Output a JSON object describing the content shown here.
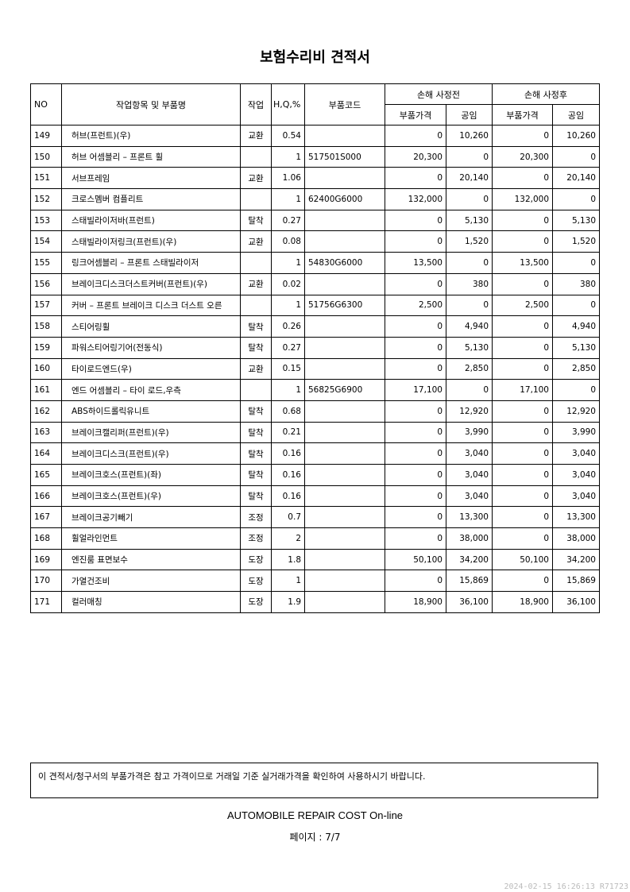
{
  "title": "보험수리비 견적서",
  "headers": {
    "no": "NO",
    "item": "작업항목 및 부품명",
    "work": "작업",
    "hq": "H,Q,%",
    "code": "부품코드",
    "before": "손해 사정전",
    "after": "손해 사정후",
    "parts_price": "부품가격",
    "labor": "공임"
  },
  "rows": [
    [
      "149",
      "허브(프런트)(우)",
      "교환",
      "0.54",
      "",
      "0",
      "10,260",
      "0",
      "10,260"
    ],
    [
      "150",
      "허브 어셈블리 – 프론트 휠",
      "",
      "1",
      "517501S000",
      "20,300",
      "0",
      "20,300",
      "0"
    ],
    [
      "151",
      "서브프레임",
      "교환",
      "1.06",
      "",
      "0",
      "20,140",
      "0",
      "20,140"
    ],
    [
      "152",
      "크로스멤버 컴플리트",
      "",
      "1",
      "62400G6000",
      "132,000",
      "0",
      "132,000",
      "0"
    ],
    [
      "153",
      "스태빌라이저바(프런트)",
      "탈착",
      "0.27",
      "",
      "0",
      "5,130",
      "0",
      "5,130"
    ],
    [
      "154",
      "스태빌라이저링크(프런트)(우)",
      "교환",
      "0.08",
      "",
      "0",
      "1,520",
      "0",
      "1,520"
    ],
    [
      "155",
      "링크어셈블리 – 프론트 스태빌라이저",
      "",
      "1",
      "54830G6000",
      "13,500",
      "0",
      "13,500",
      "0"
    ],
    [
      "156",
      "브레이크디스크더스트커버(프런트)(우)",
      "교환",
      "0.02",
      "",
      "0",
      "380",
      "0",
      "380"
    ],
    [
      "157",
      "커버 – 프론트 브레이크 디스크 더스트 오른",
      "",
      "1",
      "51756G6300",
      "2,500",
      "0",
      "2,500",
      "0"
    ],
    [
      "158",
      "스티어링휠",
      "탈착",
      "0.26",
      "",
      "0",
      "4,940",
      "0",
      "4,940"
    ],
    [
      "159",
      "파워스티어링기어(전동식)",
      "탈착",
      "0.27",
      "",
      "0",
      "5,130",
      "0",
      "5,130"
    ],
    [
      "160",
      "타이로드엔드(우)",
      "교환",
      "0.15",
      "",
      "0",
      "2,850",
      "0",
      "2,850"
    ],
    [
      "161",
      "엔드 어셈블리 – 타이 로드,우측",
      "",
      "1",
      "56825G6900",
      "17,100",
      "0",
      "17,100",
      "0"
    ],
    [
      "162",
      "ABS하이드롤릭유니트",
      "탈착",
      "0.68",
      "",
      "0",
      "12,920",
      "0",
      "12,920"
    ],
    [
      "163",
      "브레이크캘리퍼(프런트)(우)",
      "탈착",
      "0.21",
      "",
      "0",
      "3,990",
      "0",
      "3,990"
    ],
    [
      "164",
      "브레이크디스크(프런트)(우)",
      "탈착",
      "0.16",
      "",
      "0",
      "3,040",
      "0",
      "3,040"
    ],
    [
      "165",
      "브레이크호스(프런트)(좌)",
      "탈착",
      "0.16",
      "",
      "0",
      "3,040",
      "0",
      "3,040"
    ],
    [
      "166",
      "브레이크호스(프런트)(우)",
      "탈착",
      "0.16",
      "",
      "0",
      "3,040",
      "0",
      "3,040"
    ],
    [
      "167",
      "브레이크공기빼기",
      "조정",
      "0.7",
      "",
      "0",
      "13,300",
      "0",
      "13,300"
    ],
    [
      "168",
      "휠얼라인먼트",
      "조정",
      "2",
      "",
      "0",
      "38,000",
      "0",
      "38,000"
    ],
    [
      "169",
      "엔진룸 표면보수",
      "도장",
      "1.8",
      "",
      "50,100",
      "34,200",
      "50,100",
      "34,200"
    ],
    [
      "170",
      "가열건조비",
      "도장",
      "1",
      "",
      "0",
      "15,869",
      "0",
      "15,869"
    ],
    [
      "171",
      "컬러매칭",
      "도장",
      "1.9",
      "",
      "18,900",
      "36,100",
      "18,900",
      "36,100"
    ]
  ],
  "note": "이 견적서/청구서의 부품가격은 참고 가격이므로 거래일 기준 실거래가격을 확인하여 사용하시기 바랍니다.",
  "footer": "AUTOMOBILE REPAIR COST On-line",
  "page": "페이지 : 7/7",
  "stamp": "2024-02-15 16:26:13 R71723"
}
